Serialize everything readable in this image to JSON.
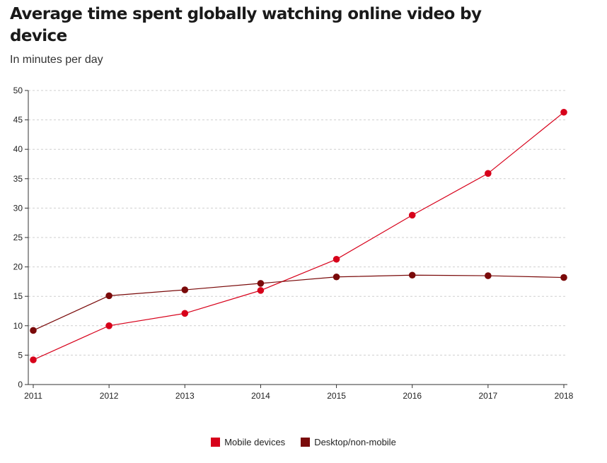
{
  "chart_data": {
    "type": "line",
    "title": "Average time spent globally watching online video by device",
    "subtitle": "In minutes per day",
    "xlabel": "",
    "ylabel": "",
    "x": [
      "2011",
      "2012",
      "2013",
      "2014",
      "2015",
      "2016",
      "2017",
      "2018"
    ],
    "ylim": [
      0,
      50
    ],
    "yticks": [
      0,
      5,
      10,
      15,
      20,
      25,
      30,
      35,
      40,
      45,
      50
    ],
    "grid": true,
    "legend_position": "bottom-center",
    "series": [
      {
        "name": "Mobile devices",
        "color": "#d7001a",
        "values": [
          4.2,
          10.0,
          12.1,
          16.0,
          21.3,
          28.8,
          35.9,
          46.3
        ]
      },
      {
        "name": "Desktop/non-mobile",
        "color": "#7a0a0a",
        "values": [
          9.2,
          15.1,
          16.1,
          17.2,
          18.3,
          18.6,
          18.5,
          18.2
        ]
      }
    ]
  }
}
